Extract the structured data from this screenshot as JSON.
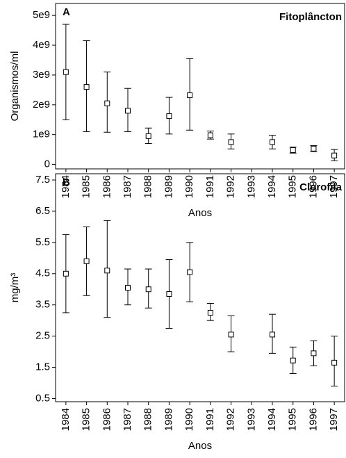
{
  "chart_data": [
    {
      "type": "errorbar",
      "panel": "A",
      "title": "Fitoplâncton",
      "xlabel": "Anos",
      "ylabel": "Organismos/ml",
      "categories": [
        "1984",
        "1985",
        "1986",
        "1987",
        "1988",
        "1989",
        "1990",
        "1991",
        "1992",
        "1993",
        "1994",
        "1995",
        "1996",
        "1997"
      ],
      "values": [
        3100000000,
        2600000000,
        2050000000,
        1800000000,
        950000000,
        1620000000,
        2320000000,
        980000000,
        750000000,
        null,
        750000000,
        480000000,
        530000000,
        300000000
      ],
      "lower": [
        1500000000,
        1100000000,
        1080000000,
        1100000000,
        700000000,
        1020000000,
        1150000000,
        850000000,
        520000000,
        null,
        520000000,
        380000000,
        430000000,
        120000000
      ],
      "upper": [
        4700000000,
        4150000000,
        3100000000,
        2550000000,
        1220000000,
        2250000000,
        3550000000,
        1120000000,
        1020000000,
        null,
        980000000,
        580000000,
        630000000,
        500000000
      ],
      "color": "#000000",
      "ylim": [
        -150000000,
        5400000000
      ],
      "yticks": [
        0,
        {
          "value": 1000000000,
          "label": "1e9"
        },
        {
          "value": 2000000000,
          "label": "2e9"
        },
        {
          "value": 3000000000,
          "label": "3e9"
        },
        {
          "value": 4000000000,
          "label": "4e9"
        },
        {
          "value": 5000000000,
          "label": "5e9"
        }
      ]
    },
    {
      "type": "errorbar",
      "panel": "B",
      "title": "Clorofila",
      "xlabel": "Anos",
      "ylabel": "mg/m³",
      "categories": [
        "1984",
        "1985",
        "1986",
        "1987",
        "1988",
        "1989",
        "1990",
        "1991",
        "1992",
        "1993",
        "1994",
        "1995",
        "1996",
        "1997"
      ],
      "values": [
        4.5,
        4.9,
        4.6,
        4.05,
        4.0,
        3.85,
        4.55,
        3.25,
        2.55,
        null,
        2.55,
        1.72,
        1.95,
        1.65
      ],
      "lower": [
        3.25,
        3.8,
        3.1,
        3.5,
        3.4,
        2.75,
        3.6,
        3.0,
        2.0,
        null,
        1.95,
        1.3,
        1.55,
        0.9
      ],
      "upper": [
        5.75,
        6.0,
        6.2,
        4.65,
        4.65,
        4.95,
        5.5,
        3.55,
        3.15,
        null,
        3.2,
        2.15,
        2.35,
        2.5
      ],
      "color": "#000000",
      "ylim": [
        0.4,
        7.7
      ],
      "yticks": [
        0.5,
        1.5,
        2.5,
        3.5,
        4.5,
        5.5,
        6.5,
        7.5
      ]
    }
  ]
}
